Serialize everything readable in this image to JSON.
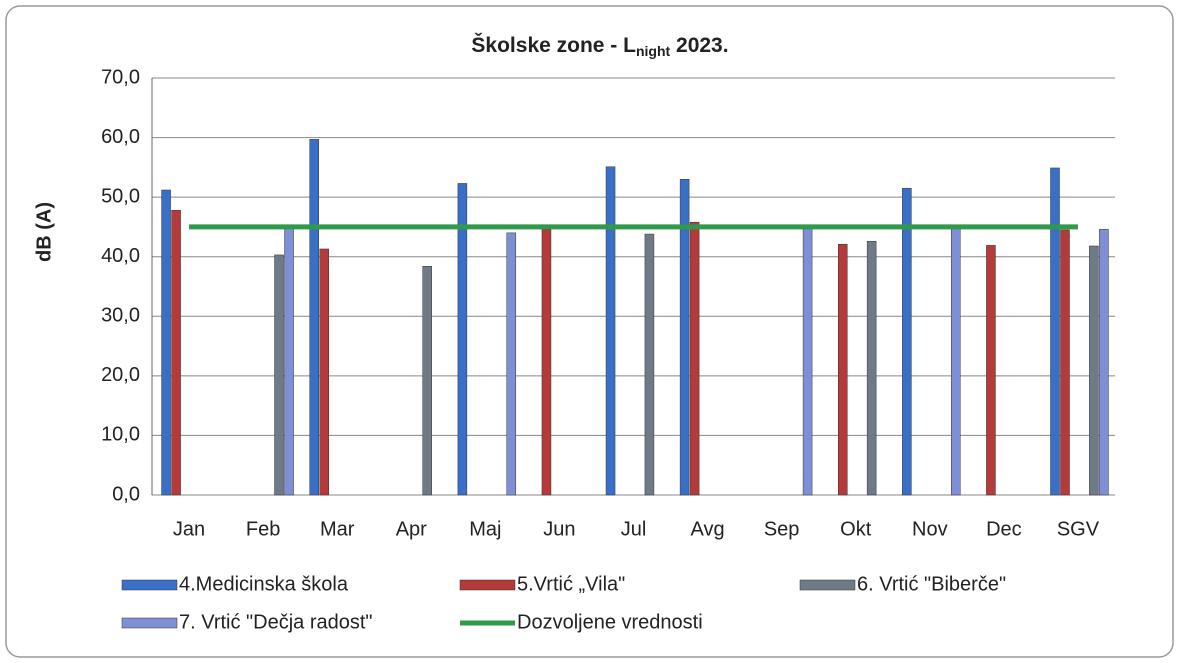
{
  "chart_data": {
    "type": "bar",
    "title": [
      "Školske zone - L",
      "night",
      " 2023."
    ],
    "y_label": "dB (A)",
    "categories": [
      "Jan",
      "Feb",
      "Mar",
      "Apr",
      "Maj",
      "Jun",
      "Jul",
      "Avg",
      "Sep",
      "Okt",
      "Nov",
      "Dec",
      "SGV"
    ],
    "series": [
      {
        "name": "4.Medicinska škola",
        "color": "#3a6fc8",
        "values": [
          51.2,
          null,
          59.7,
          null,
          52.3,
          null,
          55.1,
          53.0,
          null,
          null,
          51.5,
          null,
          54.9
        ]
      },
      {
        "name": "5.Vrtić „Vila\"",
        "color": "#b53a3a",
        "values": [
          47.8,
          null,
          41.3,
          null,
          null,
          44.6,
          null,
          45.8,
          null,
          42.1,
          null,
          41.9,
          44.5
        ]
      },
      {
        "name": "6. Vrtić \"Biberče\"",
        "color": "#6e7a86",
        "values": [
          null,
          40.3,
          null,
          38.4,
          null,
          null,
          43.8,
          null,
          null,
          42.6,
          null,
          null,
          41.8
        ]
      },
      {
        "name": "7. Vrtić \"Dečja radost\"",
        "color": "#7f8fd6",
        "values": [
          null,
          44.8,
          null,
          null,
          44.0,
          null,
          null,
          null,
          44.9,
          null,
          44.8,
          null,
          44.6
        ]
      },
      {
        "name": "Dozvoljene vrednosti",
        "color": "#2e9a4a",
        "type": "line",
        "values": [
          45,
          45,
          45,
          45,
          45,
          45,
          45,
          45,
          45,
          45,
          45,
          45,
          45
        ]
      }
    ],
    "ylim": [
      0,
      70
    ],
    "yticks": [
      {
        "value": 0,
        "label": "0,0"
      },
      {
        "value": 10,
        "label": "10,0"
      },
      {
        "value": 20,
        "label": "20,0"
      },
      {
        "value": 30,
        "label": "30,0"
      },
      {
        "value": 40,
        "label": "40,0"
      },
      {
        "value": 50,
        "label": "50,0"
      },
      {
        "value": 60,
        "label": "60,0"
      },
      {
        "value": 70,
        "label": "70,0"
      }
    ],
    "grid": true,
    "legend": "bottom"
  }
}
